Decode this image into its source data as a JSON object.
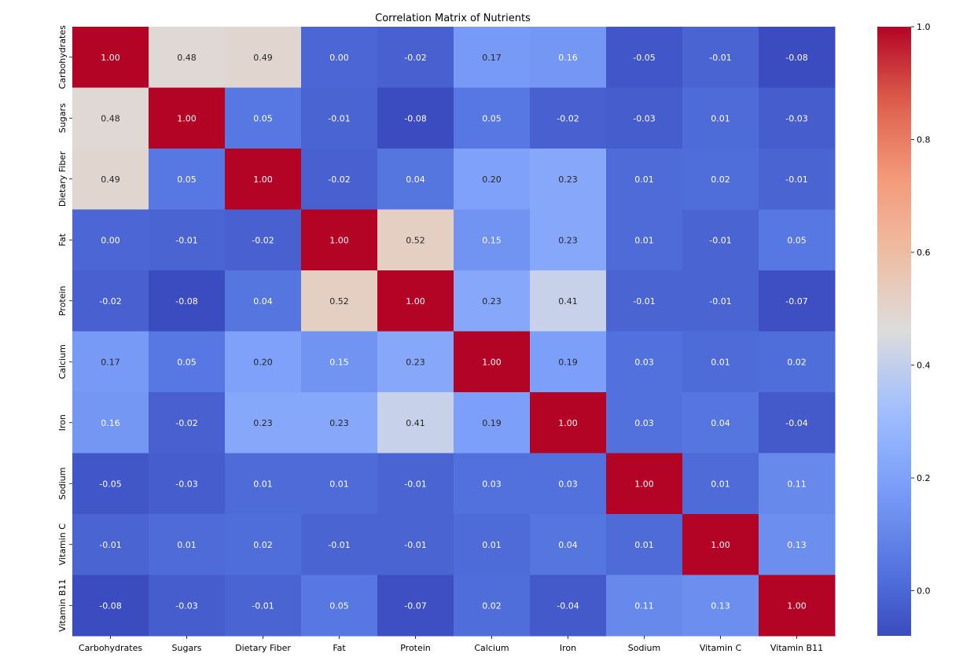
{
  "chart_data": {
    "type": "heatmap",
    "title": "Correlation Matrix of Nutrients",
    "xlabel": "",
    "ylabel": "",
    "x_categories": [
      "Carbohydrates",
      "Sugars",
      "Dietary Fiber",
      "Fat",
      "Protein",
      "Calcium",
      "Iron",
      "Sodium",
      "Vitamin C",
      "Vitamin B11"
    ],
    "y_categories": [
      "Carbohydrates",
      "Sugars",
      "Dietary Fiber",
      "Fat",
      "Protein",
      "Calcium",
      "Iron",
      "Sodium",
      "Vitamin C",
      "Vitamin B11"
    ],
    "values": [
      [
        1.0,
        0.48,
        0.49,
        0.0,
        -0.02,
        0.17,
        0.16,
        -0.05,
        -0.01,
        -0.08
      ],
      [
        0.48,
        1.0,
        0.05,
        -0.01,
        -0.08,
        0.05,
        -0.02,
        -0.03,
        0.01,
        -0.03
      ],
      [
        0.49,
        0.05,
        1.0,
        -0.02,
        0.04,
        0.2,
        0.23,
        0.01,
        0.02,
        -0.01
      ],
      [
        0.0,
        -0.01,
        -0.02,
        1.0,
        0.52,
        0.15,
        0.23,
        0.01,
        -0.01,
        0.05
      ],
      [
        -0.02,
        -0.08,
        0.04,
        0.52,
        1.0,
        0.23,
        0.41,
        -0.01,
        -0.01,
        -0.07
      ],
      [
        0.17,
        0.05,
        0.2,
        0.15,
        0.23,
        1.0,
        0.19,
        0.03,
        0.01,
        0.02
      ],
      [
        0.16,
        -0.02,
        0.23,
        0.23,
        0.41,
        0.19,
        1.0,
        0.03,
        0.04,
        -0.04
      ],
      [
        -0.05,
        -0.03,
        0.01,
        0.01,
        -0.01,
        0.03,
        0.03,
        1.0,
        0.01,
        0.11
      ],
      [
        -0.01,
        0.01,
        0.02,
        -0.01,
        -0.01,
        0.01,
        0.04,
        0.01,
        1.0,
        0.13
      ],
      [
        -0.08,
        -0.03,
        -0.01,
        0.05,
        -0.07,
        0.02,
        -0.04,
        0.11,
        0.13,
        1.0
      ]
    ],
    "annotation_format": "2 decimals",
    "colormap": "coolwarm",
    "value_range": [
      -0.08,
      1.0
    ],
    "colorbar_ticks": [
      "0.0",
      "0.2",
      "0.4",
      "0.6",
      "0.8",
      "1.0"
    ],
    "colorbar_tick_values": [
      0.0,
      0.2,
      0.4,
      0.6,
      0.8,
      1.0
    ],
    "grid": false,
    "legend": "colorbar-right"
  }
}
